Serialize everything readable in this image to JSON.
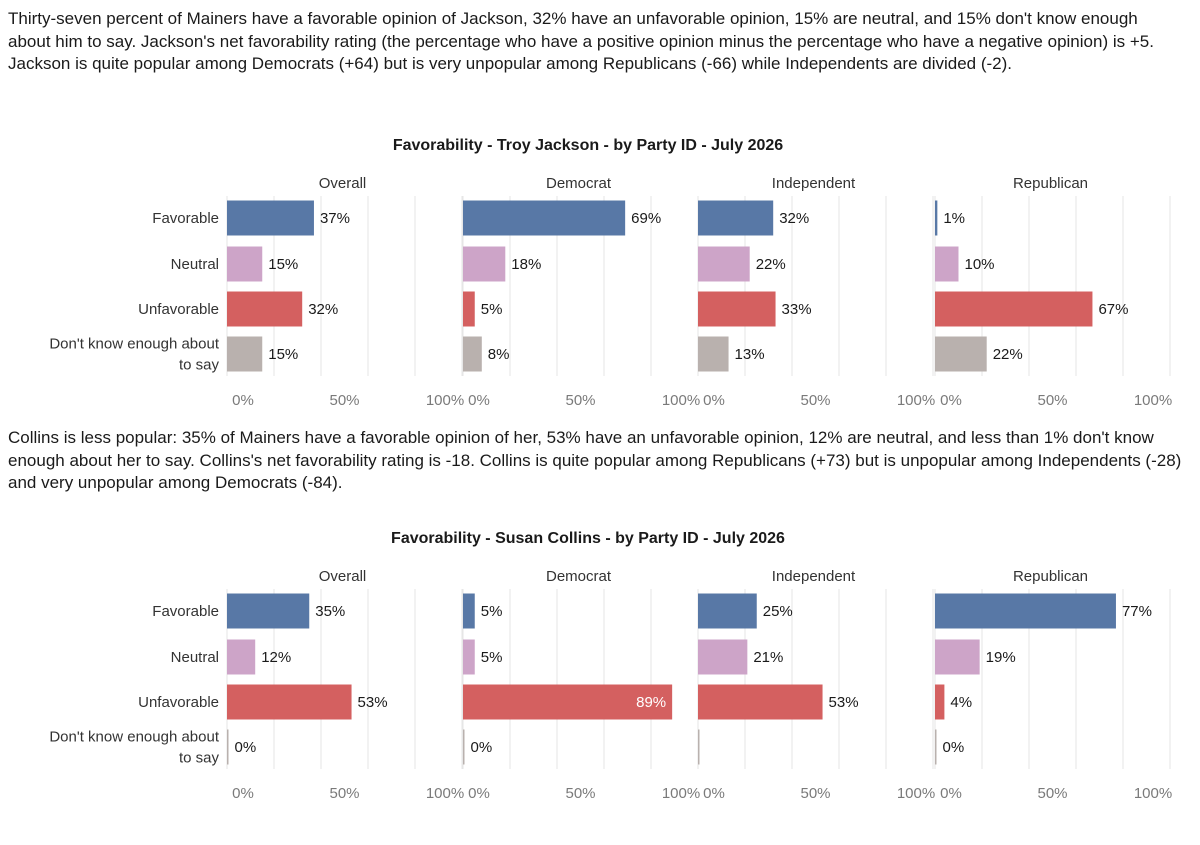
{
  "paragraphs": {
    "jackson": "Thirty-seven percent of Mainers have a favorable opinion of Jackson, 32% have an unfavorable opinion, 15% are neutral, and 15% don't know enough about him to say. Jackson's net favorability rating (the percentage who have a positive opinion minus the percentage who have a negative opinion) is +5. Jackson is quite popular among Democrats (+64) but is very unpopular among Republicans (-66) while Independents are divided (-2).",
    "collins": "Collins is less popular: 35% of Mainers have a favorable opinion of her, 53% have an unfavorable opinion, 12% are neutral, and less than 1% don't know enough about her to say. Collins's net favorability rating is -18. Collins is quite popular among Republicans (+73) but is unpopular among Independents (-28) and very unpopular among Democrats (-84)."
  },
  "colors": {
    "Favorable": "#5878a6",
    "Neutral": "#cda4c8",
    "Unfavorable": "#d46060",
    "Don't know enough about to say": "#b9b1ae"
  },
  "chart_data": [
    {
      "type": "bar",
      "orientation": "horizontal",
      "title": "Favorability - Troy Jackson - by Party ID - July 2026",
      "categories": [
        "Favorable",
        "Neutral",
        "Unfavorable",
        "Don't know enough about to say"
      ],
      "category_label_lines": [
        [
          "Favorable"
        ],
        [
          "Neutral"
        ],
        [
          "Unfavorable"
        ],
        [
          "Don't know enough about",
          "to say"
        ]
      ],
      "panels": [
        {
          "name": "Overall",
          "values": [
            37,
            15,
            32,
            15
          ],
          "labels": [
            "37%",
            "15%",
            "32%",
            "15%"
          ]
        },
        {
          "name": "Democrat",
          "values": [
            69,
            18,
            5,
            8
          ],
          "labels": [
            "69%",
            "18%",
            "5%",
            "8%"
          ]
        },
        {
          "name": "Independent",
          "values": [
            32,
            22,
            33,
            13
          ],
          "labels": [
            "32%",
            "22%",
            "33%",
            "13%"
          ]
        },
        {
          "name": "Republican",
          "values": [
            1,
            10,
            67,
            22
          ],
          "labels": [
            "1%",
            "10%",
            "67%",
            "22%"
          ]
        }
      ],
      "xlim": [
        0,
        100
      ],
      "xticks": [
        "0%",
        "50%",
        "100%"
      ],
      "grid": true
    },
    {
      "type": "bar",
      "orientation": "horizontal",
      "title": "Favorability - Susan Collins - by Party ID - July 2026",
      "categories": [
        "Favorable",
        "Neutral",
        "Unfavorable",
        "Don't know enough about to say"
      ],
      "category_label_lines": [
        [
          "Favorable"
        ],
        [
          "Neutral"
        ],
        [
          "Unfavorable"
        ],
        [
          "Don't know enough about",
          "to say"
        ]
      ],
      "panels": [
        {
          "name": "Overall",
          "values": [
            35,
            12,
            53,
            0
          ],
          "labels": [
            "35%",
            "12%",
            "53%",
            "0%"
          ]
        },
        {
          "name": "Democrat",
          "values": [
            5,
            5,
            89,
            0
          ],
          "labels": [
            "5%",
            "5%",
            "89%",
            "0%"
          ]
        },
        {
          "name": "Independent",
          "values": [
            25,
            21,
            53,
            0
          ],
          "labels": [
            "25%",
            "21%",
            "53%",
            ""
          ]
        },
        {
          "name": "Republican",
          "values": [
            77,
            19,
            4,
            0
          ],
          "labels": [
            "77%",
            "19%",
            "4%",
            "0%"
          ]
        }
      ],
      "xlim": [
        0,
        100
      ],
      "xticks": [
        "0%",
        "50%",
        "100%"
      ],
      "grid": true
    }
  ]
}
